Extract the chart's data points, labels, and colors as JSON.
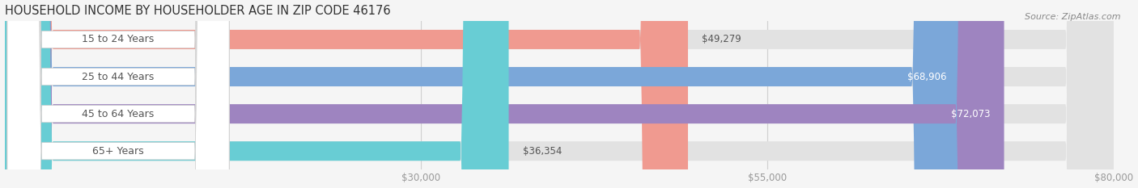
{
  "title": "HOUSEHOLD INCOME BY HOUSEHOLDER AGE IN ZIP CODE 46176",
  "source": "Source: ZipAtlas.com",
  "categories": [
    "15 to 24 Years",
    "25 to 44 Years",
    "45 to 64 Years",
    "65+ Years"
  ],
  "values": [
    49279,
    68906,
    72073,
    36354
  ],
  "bar_colors": [
    "#F09A90",
    "#7BA7D9",
    "#9E84C0",
    "#68CDD4"
  ],
  "bg_color": "#f5f5f5",
  "bar_bg_color": "#e2e2e2",
  "label_bg_color": "#ffffff",
  "xmin": 0,
  "xmax": 80000,
  "xticks": [
    30000,
    55000,
    80000
  ],
  "xtick_labels": [
    "$30,000",
    "$55,000",
    "$80,000"
  ],
  "value_labels": [
    "$49,279",
    "$68,906",
    "$72,073",
    "$36,354"
  ],
  "value_inside": [
    false,
    true,
    true,
    false
  ],
  "title_fontsize": 10.5,
  "label_fontsize": 9,
  "value_fontsize": 8.5,
  "source_fontsize": 8,
  "cat_label_color": "#555555",
  "value_color_inside": "#ffffff",
  "value_color_outside": "#555555"
}
